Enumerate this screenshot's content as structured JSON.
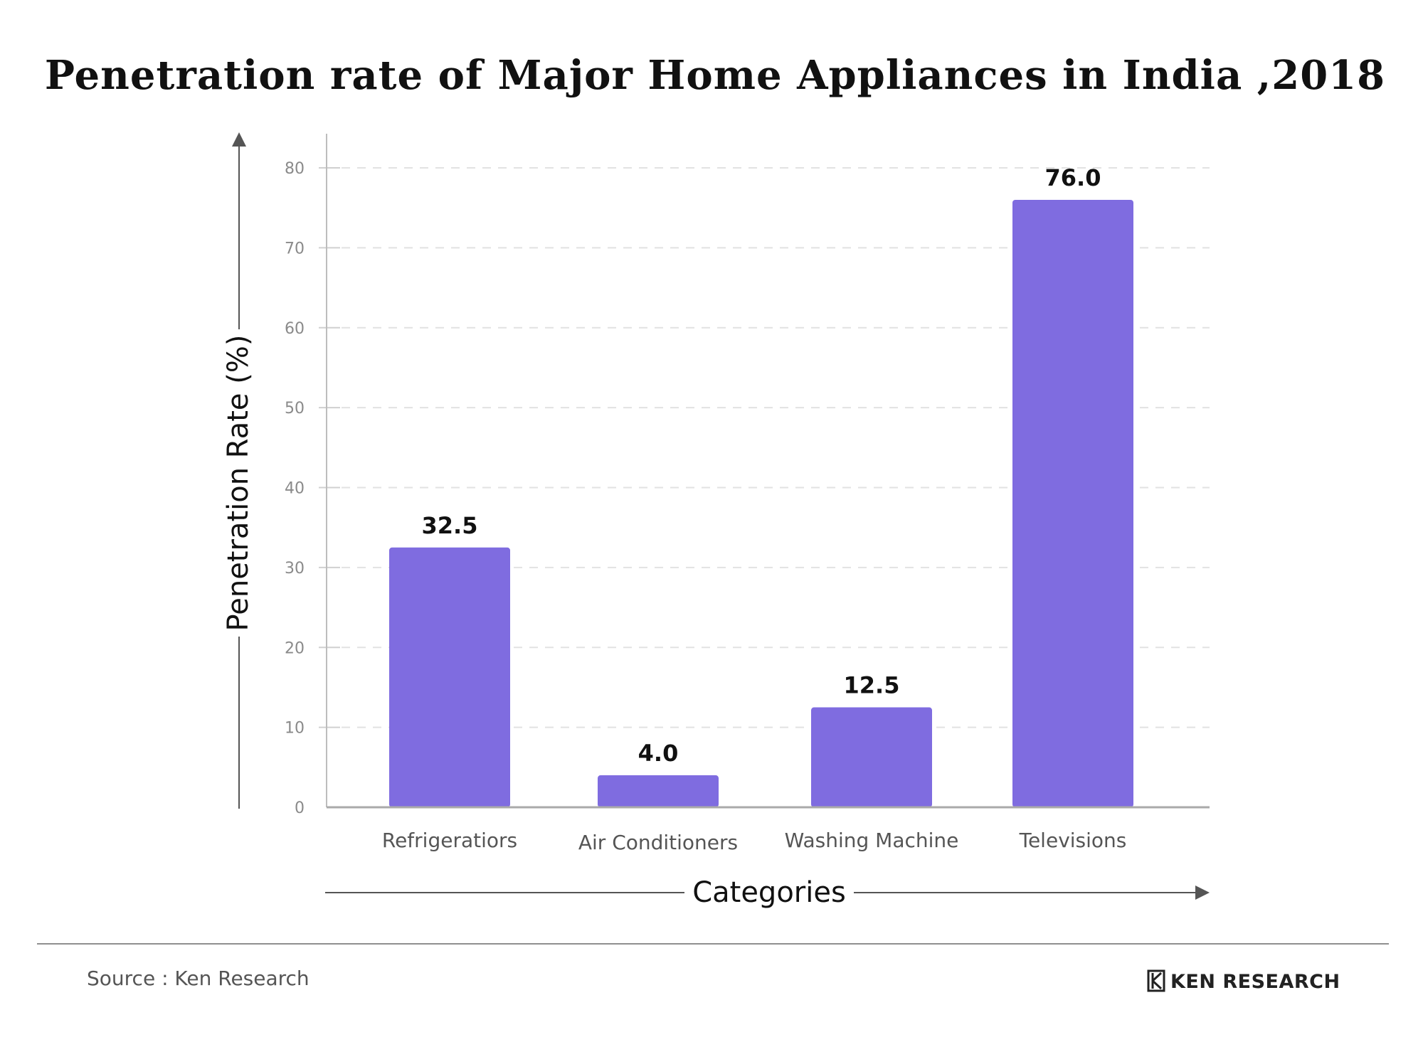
{
  "chart_data": {
    "type": "bar",
    "title": "Penetration rate of Major Home Appliances in India ,2018",
    "xlabel": "Categories",
    "ylabel": "Penetration Rate (%)",
    "categories": [
      "Refrigeratiors",
      "Air Conditioners",
      "Washing Machine",
      "Televisions"
    ],
    "values": [
      32.5,
      4.0,
      12.5,
      76.0
    ],
    "data_labels": [
      "32.5",
      "4.0",
      "12.5",
      "76.0"
    ],
    "ylim": [
      0,
      80
    ],
    "yticks": [
      0,
      10,
      20,
      30,
      40,
      50,
      60,
      70,
      80
    ],
    "grid": true,
    "bar_color": "#7f6ce0"
  },
  "footer": {
    "source": "Source : Ken Research",
    "logo_text": "KEN RESEARCH"
  }
}
